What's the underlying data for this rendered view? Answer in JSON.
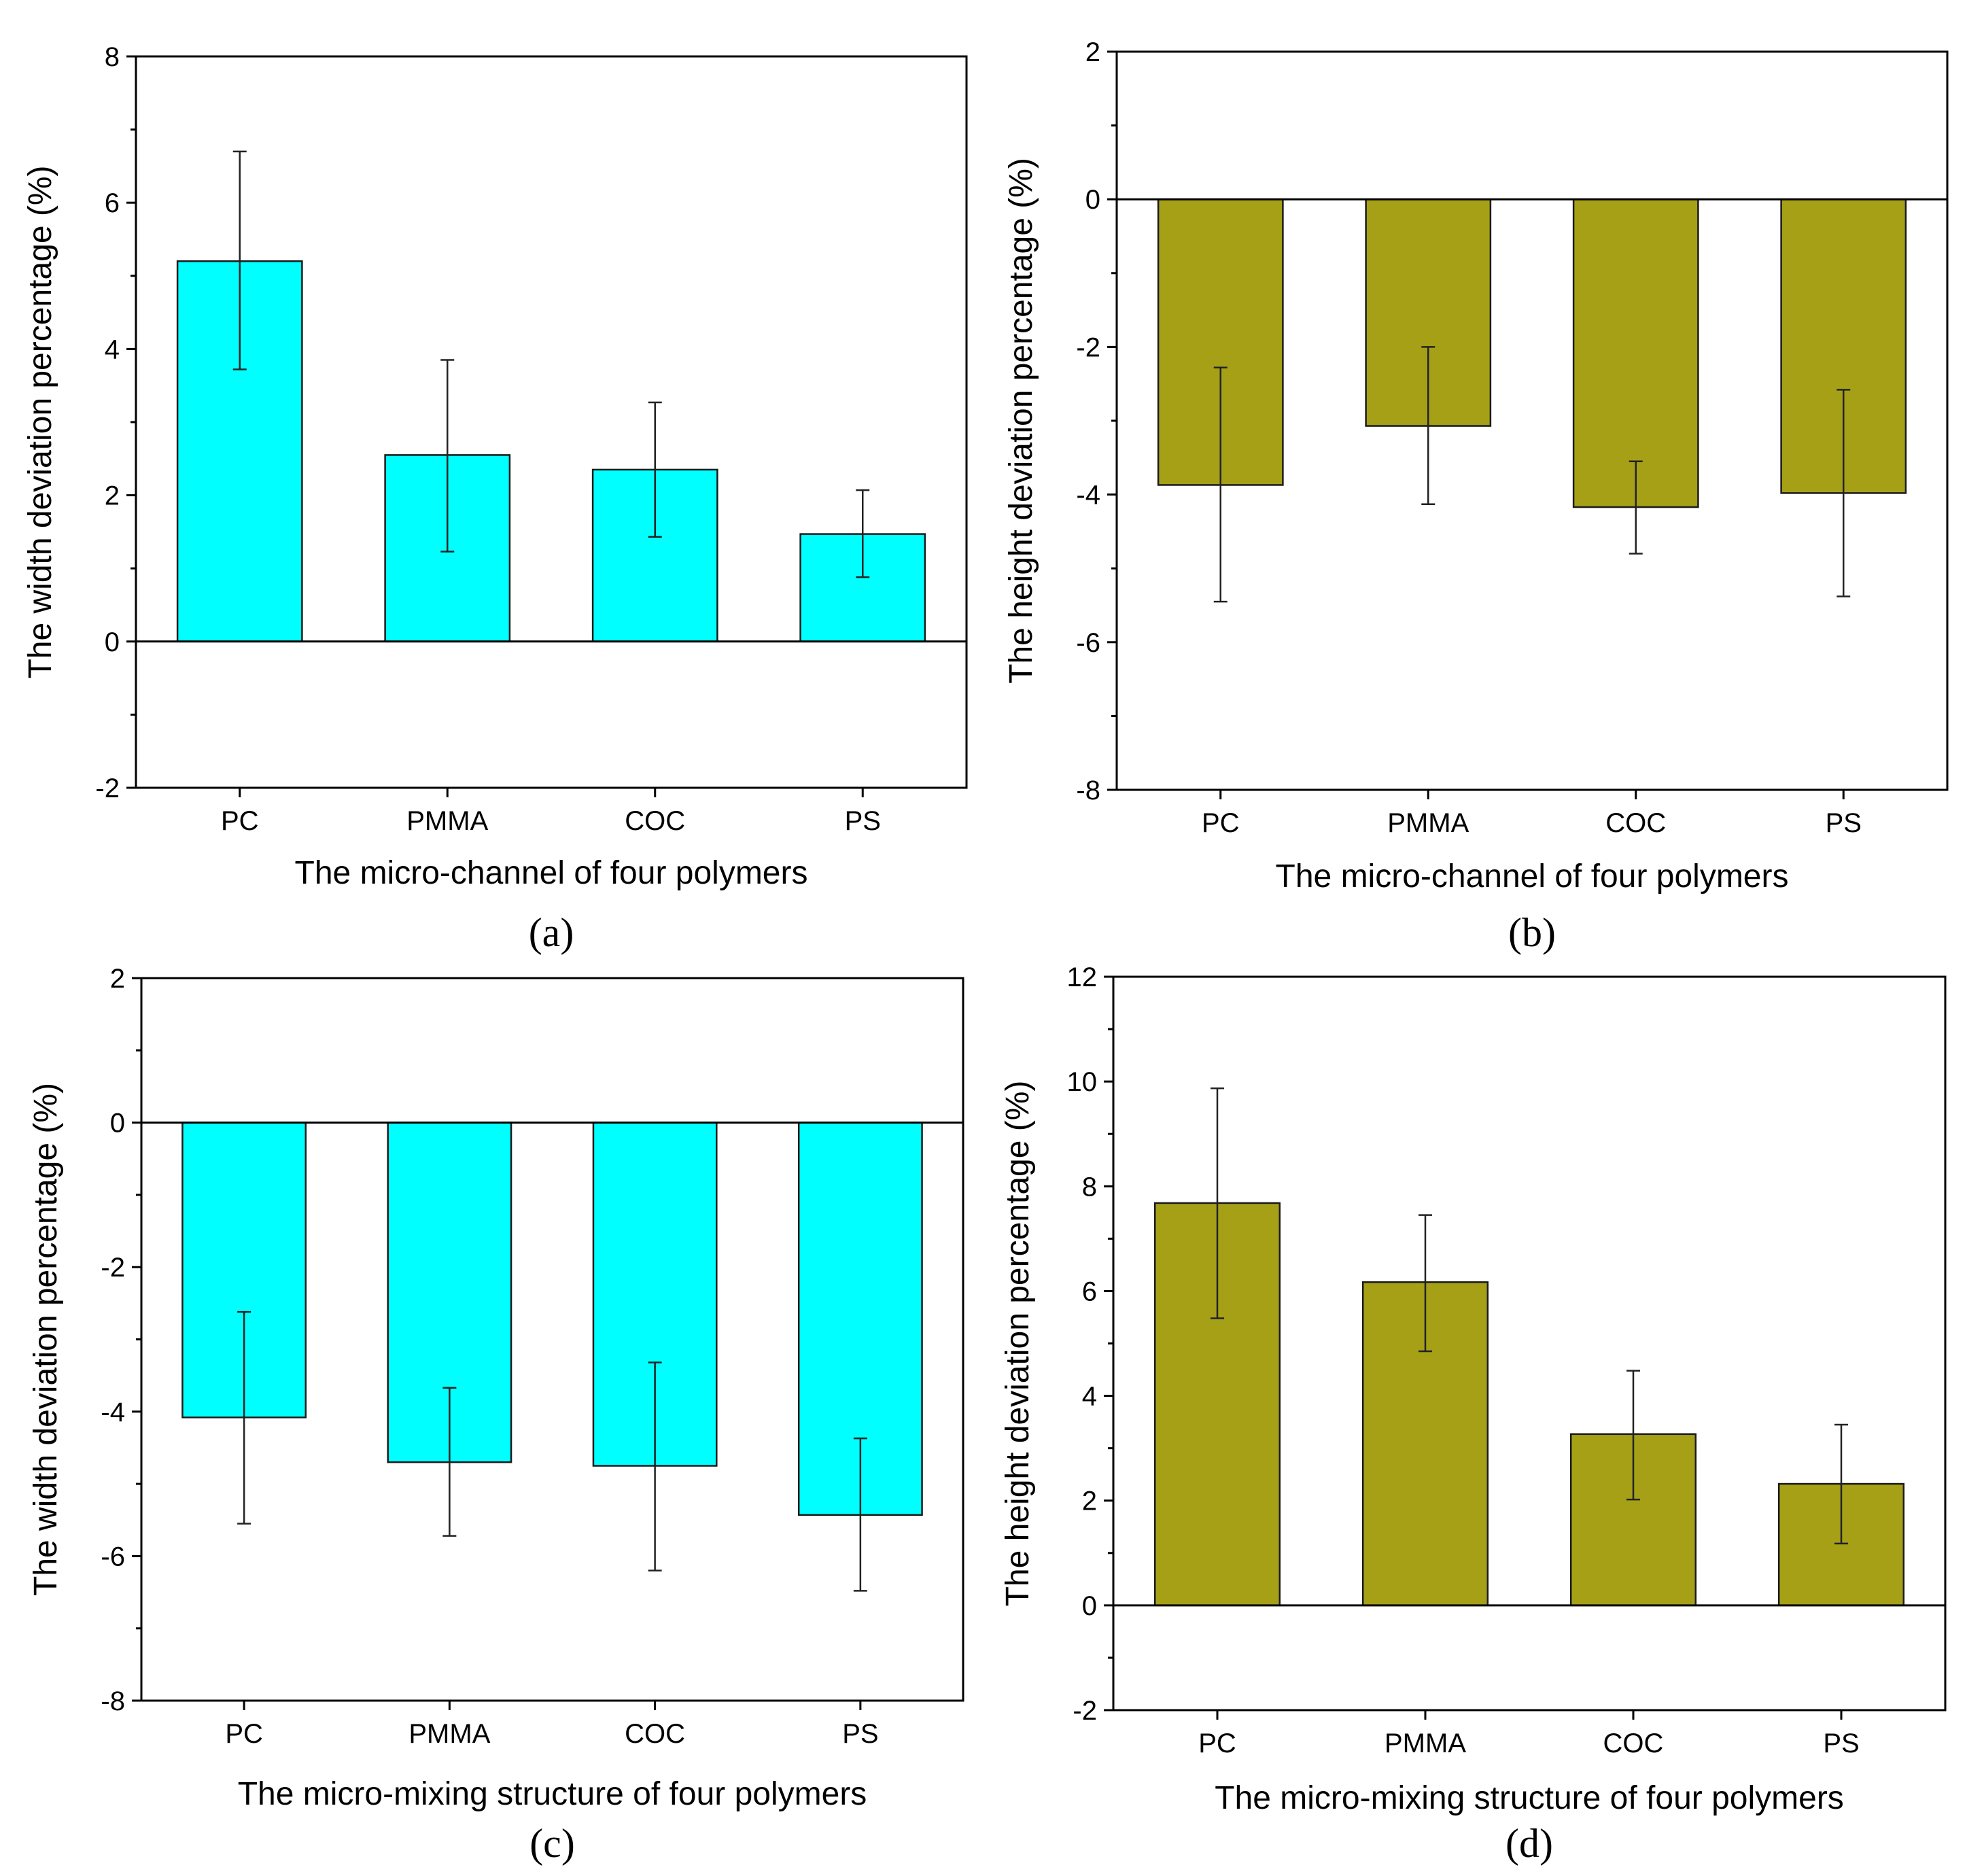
{
  "chart_data": [
    {
      "panel": "(a)",
      "type": "bar",
      "categories": [
        "PC",
        "PMMA",
        "COC",
        "PS"
      ],
      "values": [
        5.2,
        2.55,
        2.35,
        1.47
      ],
      "error_low": [
        3.72,
        1.23,
        1.43,
        0.88
      ],
      "error_high": [
        6.7,
        3.85,
        3.27,
        2.07
      ],
      "xlabel": "The micro-channel of four polymers",
      "ylabel": "The width deviation percentage (%)",
      "ylim": [
        -2,
        8
      ],
      "yticks": [
        -2,
        0,
        2,
        4,
        6,
        8
      ],
      "color": "#00FFFF"
    },
    {
      "panel": "(b)",
      "type": "bar",
      "categories": [
        "PC",
        "PMMA",
        "COC",
        "PS"
      ],
      "values": [
        -3.87,
        -3.07,
        -4.17,
        -3.98
      ],
      "error_low": [
        -5.45,
        -4.13,
        -4.8,
        -5.38
      ],
      "error_high": [
        -2.28,
        -2.0,
        -3.55,
        -2.58
      ],
      "xlabel": "The micro-channel of four polymers",
      "ylabel": "The height deviation percentage (%)",
      "ylim": [
        -8,
        2
      ],
      "yticks": [
        -8,
        -6,
        -4,
        -2,
        0,
        2
      ],
      "color": "#A6A016"
    },
    {
      "panel": "(c)",
      "type": "bar",
      "categories": [
        "PC",
        "PMMA",
        "COC",
        "PS"
      ],
      "values": [
        -4.08,
        -4.7,
        -4.75,
        -5.43
      ],
      "error_low": [
        -5.55,
        -5.72,
        -6.2,
        -6.48
      ],
      "error_high": [
        -2.62,
        -3.67,
        -3.32,
        -4.37
      ],
      "xlabel": "The micro-mixing structure of four polymers",
      "ylabel": "The width deviation percentage (%)",
      "ylim": [
        -8,
        2
      ],
      "yticks": [
        -8,
        -6,
        -4,
        -2,
        0,
        2
      ],
      "color": "#00FFFF"
    },
    {
      "panel": "(d)",
      "type": "bar",
      "categories": [
        "PC",
        "PMMA",
        "COC",
        "PS"
      ],
      "values": [
        7.68,
        6.17,
        3.27,
        2.32
      ],
      "error_low": [
        5.48,
        4.85,
        2.02,
        1.18
      ],
      "error_high": [
        9.87,
        7.45,
        4.48,
        3.45
      ],
      "xlabel": "The micro-mixing structure of four polymers",
      "ylabel": "The height deviation percentage (%)",
      "ylim": [
        -2,
        12
      ],
      "yticks": [
        -2,
        0,
        2,
        4,
        6,
        8,
        10,
        12
      ],
      "color": "#A6A016"
    }
  ]
}
